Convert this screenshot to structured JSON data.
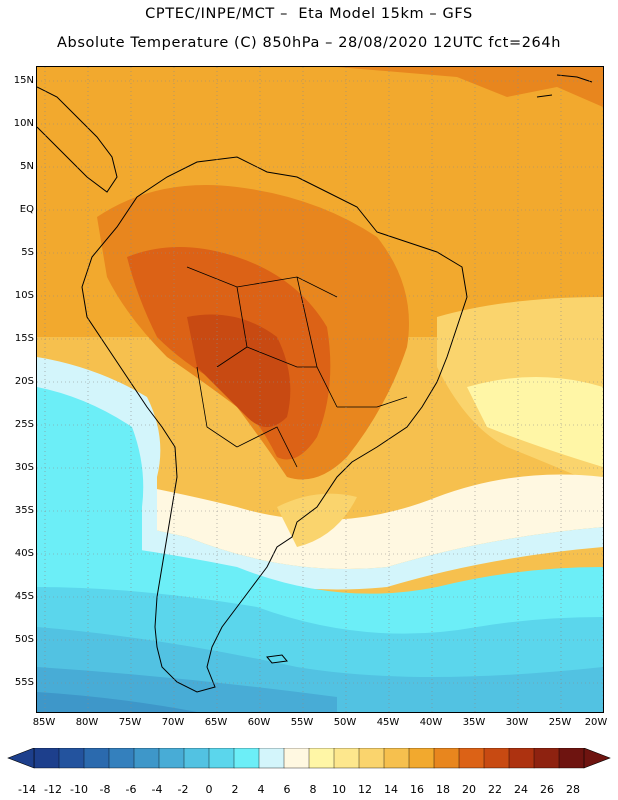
{
  "header": {
    "line1": "CPTEC/INPE/MCT –  Eta Model 15km – GFS",
    "line2": "Absolute Temperature (C) 850hPa – 28/08/2020 12UTC fct=264h"
  },
  "map": {
    "lat_labels": [
      "15N",
      "10N",
      "5N",
      "EQ",
      "5S",
      "10S",
      "15S",
      "20S",
      "25S",
      "30S",
      "35S",
      "40S",
      "45S",
      "50S",
      "55S"
    ],
    "lon_labels": [
      "85W",
      "80W",
      "75W",
      "70W",
      "65W",
      "60W",
      "55W",
      "50W",
      "45W",
      "40W",
      "35W",
      "30W",
      "25W",
      "20W"
    ],
    "lat_range": [
      17,
      -58
    ],
    "lon_range": [
      -86,
      -20
    ],
    "gridlines": true
  },
  "colorbar": {
    "labels": [
      "-14",
      "-12",
      "-10",
      "-8",
      "-6",
      "-4",
      "-2",
      "0",
      "2",
      "4",
      "6",
      "8",
      "10",
      "12",
      "14",
      "16",
      "18",
      "20",
      "22",
      "24",
      "26",
      "28"
    ],
    "colors": [
      "#1d3f8c",
      "#23539e",
      "#2b6aae",
      "#3480bd",
      "#3e97c9",
      "#48acd6",
      "#52c2e2",
      "#5bd6ec",
      "#6ceef7",
      "#d3f5fb",
      "#fff8e1",
      "#fff6a6",
      "#fde78d",
      "#fad46d",
      "#f6c04e",
      "#f2a92e",
      "#e8861e",
      "#dc6216",
      "#c84a12",
      "#ad3210",
      "#8e2210",
      "#6e1410"
    ],
    "end_low_color": "#1d3f8c",
    "end_high_color": "#6e1410"
  }
}
